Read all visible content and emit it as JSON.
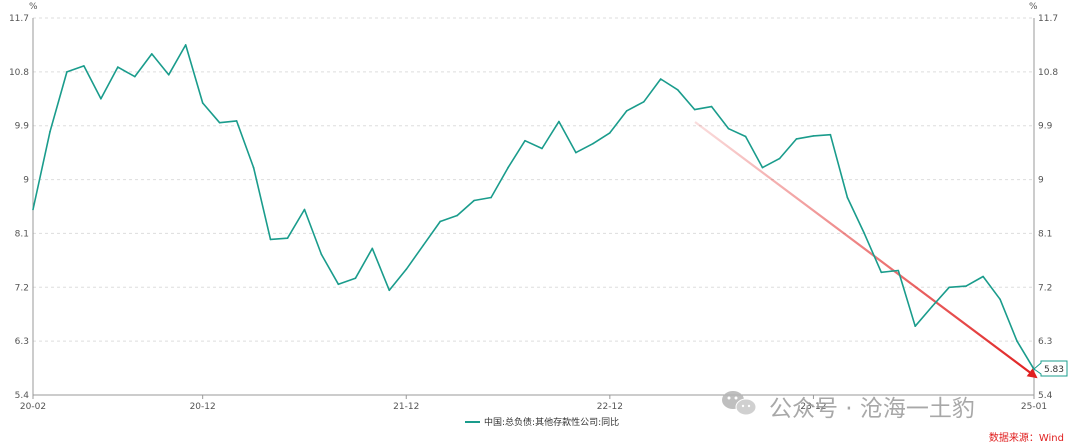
{
  "chart_data": {
    "type": "line",
    "unit_left": "%",
    "unit_right": "%",
    "yticks": [
      "11.7",
      "10.8",
      "9.9",
      "9",
      "8.1",
      "7.2",
      "6.3",
      "5.4"
    ],
    "ylim": [
      5.4,
      11.7
    ],
    "xticks": [
      "20-02",
      "20-12",
      "21-12",
      "22-12",
      "23-12",
      "25-01"
    ],
    "grid": true,
    "legend_position": "bottom-center",
    "series": [
      {
        "name": "中国:总负债:其他存款性公司:同比",
        "color": "#1a9c8c",
        "values": [
          8.5,
          9.8,
          10.8,
          10.9,
          10.35,
          10.88,
          10.72,
          11.1,
          10.75,
          11.25,
          10.28,
          9.95,
          9.98,
          9.2,
          8.0,
          8.02,
          8.5,
          7.75,
          7.25,
          7.35,
          7.85,
          7.15,
          7.5,
          7.9,
          8.3,
          8.4,
          8.65,
          8.7,
          9.2,
          9.65,
          9.52,
          9.97,
          9.45,
          9.6,
          9.78,
          10.15,
          10.3,
          10.68,
          10.5,
          10.17,
          10.22,
          9.85,
          9.72,
          9.2,
          9.35,
          9.68,
          9.73,
          9.75,
          8.7,
          8.1,
          7.45,
          7.48,
          6.55,
          6.88,
          7.2,
          7.22,
          7.38,
          7.0,
          6.3,
          5.83
        ]
      }
    ],
    "end_label": "5.83",
    "annotation": "trend-arrow"
  },
  "watermark": {
    "text": "公众号 · 沧海一土豹",
    "icon": "wechat-icon"
  },
  "source": "数据来源：Wind"
}
